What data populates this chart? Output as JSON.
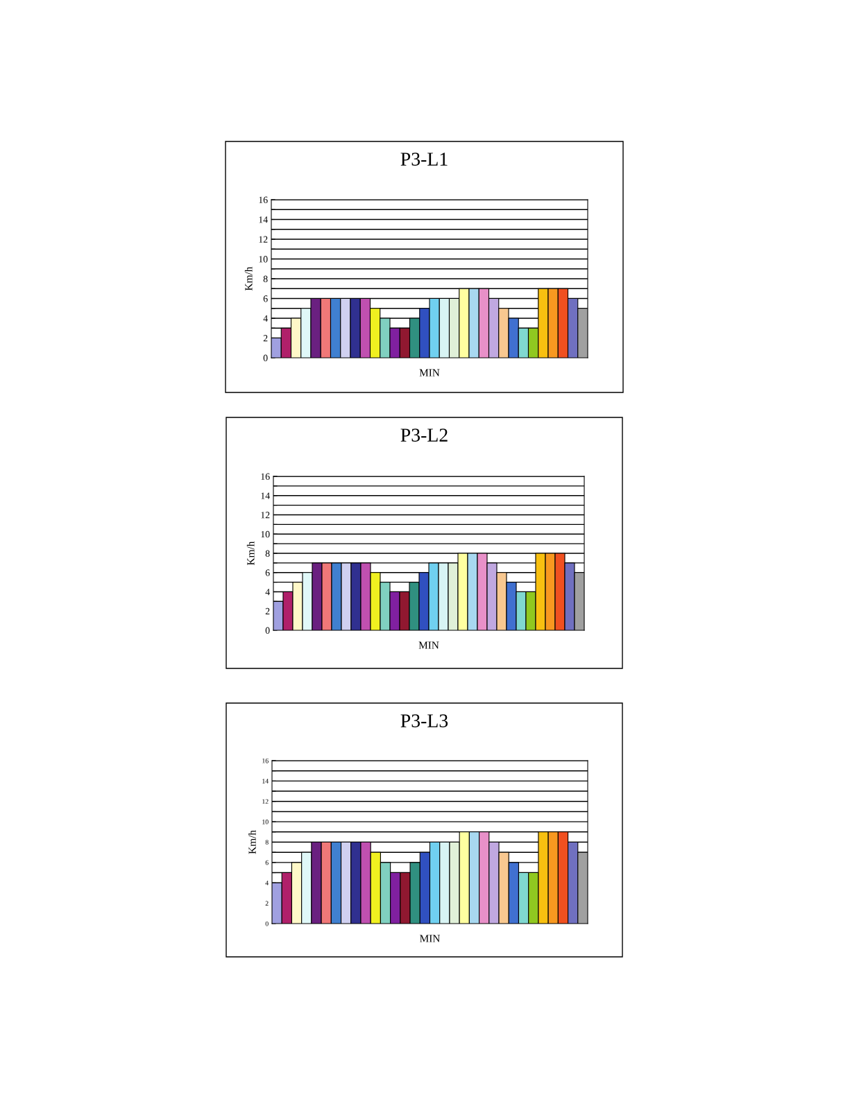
{
  "chart_data": [
    {
      "type": "bar",
      "title": "P3-L1",
      "xlabel": "MIN",
      "ylabel": "Km/h",
      "grid": "y",
      "categories": [
        null,
        null,
        null,
        null,
        null,
        null,
        null,
        null,
        null,
        null,
        null,
        null,
        null,
        null,
        null,
        null,
        null,
        null,
        null,
        null,
        null,
        null,
        null,
        null,
        null,
        null,
        null,
        null,
        null,
        null,
        null,
        null
      ],
      "values": [
        2,
        3,
        4,
        5,
        6,
        6,
        6,
        6,
        6,
        6,
        5,
        4,
        3,
        3,
        4,
        5,
        6,
        6,
        6,
        7,
        7,
        7,
        6,
        5,
        4,
        3,
        3,
        7,
        7,
        7,
        6,
        5
      ],
      "colors": [
        "#a0a0e0",
        "#b0206a",
        "#fff8c8",
        "#e0f8f8",
        "#6a2080",
        "#f07878",
        "#4080d0",
        "#d0d0f0",
        "#303090",
        "#c050b0",
        "#f0f020",
        "#80d0c0",
        "#8020a0",
        "#901830",
        "#309080",
        "#3050c0",
        "#70d0f0",
        "#d8f4f4",
        "#e0f0d8",
        "#ffffa0",
        "#a8d8f0",
        "#e890c8",
        "#c0a8e0",
        "#f8c890",
        "#4070d0",
        "#80d8d0",
        "#90c820",
        "#f8c010",
        "#f89820",
        "#f05020",
        "#7070c0",
        "#a0a0a0"
      ],
      "ylim": [
        0,
        16
      ],
      "yticks": [
        0,
        {
          "value": 1,
          "label": null
        },
        2,
        {
          "value": 3,
          "label": null
        },
        4,
        {
          "value": 5,
          "label": null
        },
        6,
        {
          "value": 7,
          "label": null
        },
        8,
        {
          "value": 9,
          "label": null
        },
        10,
        {
          "value": 11,
          "label": null
        },
        12,
        {
          "value": 13,
          "label": null
        },
        14,
        {
          "value": 15,
          "label": null
        },
        16
      ]
    },
    {
      "type": "bar",
      "title": "P3-L2",
      "xlabel": "MIN",
      "ylabel": "Km/h",
      "grid": "y",
      "categories": [
        null,
        null,
        null,
        null,
        null,
        null,
        null,
        null,
        null,
        null,
        null,
        null,
        null,
        null,
        null,
        null,
        null,
        null,
        null,
        null,
        null,
        null,
        null,
        null,
        null,
        null,
        null,
        null,
        null,
        null,
        null,
        null
      ],
      "values": [
        3,
        4,
        5,
        6,
        7,
        7,
        7,
        7,
        7,
        7,
        6,
        5,
        4,
        4,
        5,
        6,
        7,
        7,
        7,
        8,
        8,
        8,
        7,
        6,
        5,
        4,
        4,
        8,
        8,
        8,
        7,
        6
      ],
      "colors": [
        "#a0a0e0",
        "#b0206a",
        "#fff8c8",
        "#e0f8f8",
        "#6a2080",
        "#f07878",
        "#4080d0",
        "#d0d0f0",
        "#303090",
        "#c050b0",
        "#f0f020",
        "#80d0c0",
        "#8020a0",
        "#901830",
        "#309080",
        "#3050c0",
        "#70d0f0",
        "#d8f4f4",
        "#e0f0d8",
        "#ffffa0",
        "#a8d8f0",
        "#e890c8",
        "#c0a8e0",
        "#f8c890",
        "#4070d0",
        "#80d8d0",
        "#90c820",
        "#f8c010",
        "#f89820",
        "#f05020",
        "#7070c0",
        "#a0a0a0"
      ],
      "ylim": [
        0,
        16
      ],
      "yticks": [
        0,
        {
          "value": 1,
          "label": null
        },
        2,
        {
          "value": 3,
          "label": null
        },
        4,
        {
          "value": 5,
          "label": null
        },
        6,
        {
          "value": 7,
          "label": null
        },
        8,
        {
          "value": 9,
          "label": null
        },
        10,
        {
          "value": 11,
          "label": null
        },
        12,
        {
          "value": 13,
          "label": null
        },
        14,
        {
          "value": 15,
          "label": null
        },
        16
      ]
    },
    {
      "type": "bar",
      "title": "P3-L3",
      "xlabel": "MIN",
      "ylabel": "Km/h",
      "grid": "y",
      "categories": [
        null,
        null,
        null,
        null,
        null,
        null,
        null,
        null,
        null,
        null,
        null,
        null,
        null,
        null,
        null,
        null,
        null,
        null,
        null,
        null,
        null,
        null,
        null,
        null,
        null,
        null,
        null,
        null,
        null,
        null,
        null,
        null
      ],
      "values": [
        4,
        5,
        6,
        7,
        8,
        8,
        8,
        8,
        8,
        8,
        7,
        6,
        5,
        5,
        6,
        7,
        8,
        8,
        8,
        9,
        9,
        9,
        8,
        7,
        6,
        5,
        5,
        9,
        9,
        9,
        8,
        7
      ],
      "colors": [
        "#a0a0e0",
        "#b0206a",
        "#fff8c8",
        "#e0f8f8",
        "#6a2080",
        "#f07878",
        "#4080d0",
        "#d0d0f0",
        "#303090",
        "#c050b0",
        "#f0f020",
        "#80d0c0",
        "#8020a0",
        "#901830",
        "#309080",
        "#3050c0",
        "#70d0f0",
        "#d8f4f4",
        "#e0f0d8",
        "#ffffa0",
        "#a8d8f0",
        "#e890c8",
        "#c0a8e0",
        "#f8c890",
        "#4070d0",
        "#80d8d0",
        "#90c820",
        "#f8c010",
        "#f89820",
        "#f05020",
        "#7070c0",
        "#a0a0a0"
      ],
      "ylim": [
        0,
        16
      ],
      "yticks": [
        0,
        {
          "value": 1,
          "label": null
        },
        2,
        {
          "value": 3,
          "label": null
        },
        4,
        {
          "value": 5,
          "label": null
        },
        6,
        {
          "value": 7,
          "label": null
        },
        8,
        {
          "value": 9,
          "label": null
        },
        10,
        {
          "value": 11,
          "label": null
        },
        12,
        {
          "value": 13,
          "label": null
        },
        14,
        {
          "value": 15,
          "label": null
        },
        16
      ]
    }
  ]
}
